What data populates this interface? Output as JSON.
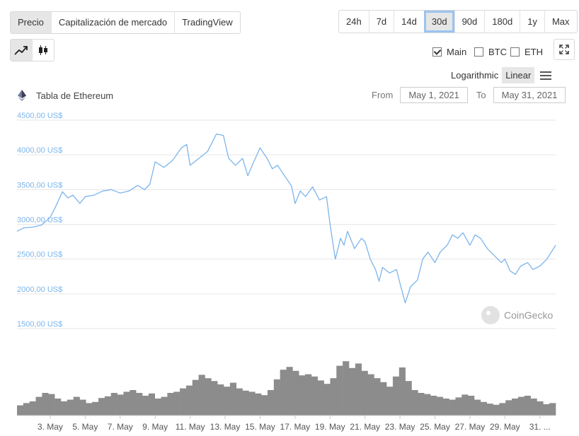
{
  "tabs": [
    {
      "label": "Precio",
      "active": true
    },
    {
      "label": "Capitalización de mercado",
      "active": false
    },
    {
      "label": "TradingView",
      "active": false
    }
  ],
  "ranges": [
    {
      "label": "24h"
    },
    {
      "label": "7d"
    },
    {
      "label": "14d"
    },
    {
      "label": "30d",
      "selected": true
    },
    {
      "label": "90d"
    },
    {
      "label": "180d"
    },
    {
      "label": "1y"
    },
    {
      "label": "Max"
    }
  ],
  "toggles": {
    "main": "Main",
    "btc": "BTC",
    "eth": "ETH"
  },
  "scale": {
    "logarithmic": "Logarithmic",
    "linear": "Linear"
  },
  "chart_title": "Tabla de Ethereum",
  "date_range": {
    "from_label": "From",
    "from": "May 1, 2021",
    "to_label": "To",
    "to": "May 31, 2021"
  },
  "watermark": "CoinGecko",
  "colors": {
    "line": "#7cb5ec",
    "volume": "#8c8c8c",
    "grid": "#e6e6e6",
    "axis_text": "#7cb5ec"
  },
  "chart_data": {
    "type": "line",
    "title": "Tabla de Ethereum",
    "y_ticks": [
      "4500,00 US$",
      "4000,00 US$",
      "3500,00 US$",
      "3000,00 US$",
      "2500,00 US$",
      "2000,00 US$",
      "1500,00 US$"
    ],
    "ylim": [
      1500,
      4500
    ],
    "xlim": [
      1.1,
      31.9
    ],
    "x_ticks": [
      "3. May",
      "5. May",
      "7. May",
      "9. May",
      "11. May",
      "13. May",
      "15. May",
      "17. May",
      "19. May",
      "21. May",
      "23. May",
      "25. May",
      "27. May",
      "29. May",
      "31. ..."
    ],
    "x_tick_days": [
      3,
      5,
      7,
      9,
      11,
      13,
      15,
      17,
      19,
      21,
      23,
      25,
      27,
      29,
      31
    ],
    "series": [
      {
        "points": [
          [
            1.1,
            2900
          ],
          [
            1.5,
            2950
          ],
          [
            2,
            2960
          ],
          [
            2.5,
            2990
          ],
          [
            3,
            3100
          ],
          [
            3.3,
            3250
          ],
          [
            3.7,
            3470
          ],
          [
            4,
            3380
          ],
          [
            4.3,
            3420
          ],
          [
            4.7,
            3300
          ],
          [
            5,
            3400
          ],
          [
            5.5,
            3420
          ],
          [
            6,
            3480
          ],
          [
            6.5,
            3500
          ],
          [
            7,
            3450
          ],
          [
            7.5,
            3480
          ],
          [
            8,
            3560
          ],
          [
            8.4,
            3500
          ],
          [
            8.7,
            3580
          ],
          [
            9,
            3900
          ],
          [
            9.5,
            3820
          ],
          [
            10,
            3920
          ],
          [
            10.5,
            4100
          ],
          [
            10.8,
            4150
          ],
          [
            11,
            3850
          ],
          [
            11.5,
            3950
          ],
          [
            12,
            4050
          ],
          [
            12.5,
            4300
          ],
          [
            12.9,
            4280
          ],
          [
            13.2,
            3950
          ],
          [
            13.6,
            3850
          ],
          [
            14,
            3950
          ],
          [
            14.3,
            3700
          ],
          [
            14.6,
            3880
          ],
          [
            15,
            4100
          ],
          [
            15.4,
            3950
          ],
          [
            15.7,
            3800
          ],
          [
            16,
            3850
          ],
          [
            16.4,
            3700
          ],
          [
            16.8,
            3550
          ],
          [
            17,
            3300
          ],
          [
            17.3,
            3480
          ],
          [
            17.6,
            3400
          ],
          [
            18,
            3540
          ],
          [
            18.4,
            3350
          ],
          [
            18.8,
            3400
          ],
          [
            19,
            3000
          ],
          [
            19.3,
            2500
          ],
          [
            19.6,
            2800
          ],
          [
            19.8,
            2700
          ],
          [
            20,
            2900
          ],
          [
            20.4,
            2650
          ],
          [
            20.8,
            2800
          ],
          [
            21,
            2750
          ],
          [
            21.3,
            2500
          ],
          [
            21.6,
            2350
          ],
          [
            21.8,
            2180
          ],
          [
            22,
            2380
          ],
          [
            22.4,
            2300
          ],
          [
            22.8,
            2350
          ],
          [
            23,
            2150
          ],
          [
            23.3,
            1870
          ],
          [
            23.6,
            2100
          ],
          [
            24,
            2200
          ],
          [
            24.3,
            2500
          ],
          [
            24.6,
            2600
          ],
          [
            25,
            2450
          ],
          [
            25.3,
            2600
          ],
          [
            25.7,
            2700
          ],
          [
            26,
            2850
          ],
          [
            26.3,
            2800
          ],
          [
            26.6,
            2880
          ],
          [
            27,
            2700
          ],
          [
            27.3,
            2850
          ],
          [
            27.6,
            2800
          ],
          [
            28,
            2650
          ],
          [
            28.4,
            2550
          ],
          [
            28.8,
            2450
          ],
          [
            29,
            2500
          ],
          [
            29.3,
            2330
          ],
          [
            29.6,
            2280
          ],
          [
            29.9,
            2400
          ],
          [
            30.3,
            2450
          ],
          [
            30.6,
            2350
          ],
          [
            31,
            2400
          ],
          [
            31.4,
            2500
          ],
          [
            31.9,
            2700
          ]
        ]
      }
    ],
    "volume": [
      0.18,
      0.22,
      0.25,
      0.33,
      0.4,
      0.38,
      0.3,
      0.25,
      0.28,
      0.33,
      0.28,
      0.22,
      0.24,
      0.31,
      0.34,
      0.4,
      0.37,
      0.42,
      0.45,
      0.4,
      0.35,
      0.39,
      0.3,
      0.33,
      0.4,
      0.42,
      0.48,
      0.53,
      0.63,
      0.72,
      0.66,
      0.61,
      0.55,
      0.51,
      0.58,
      0.48,
      0.44,
      0.42,
      0.39,
      0.36,
      0.45,
      0.64,
      0.81,
      0.86,
      0.79,
      0.71,
      0.73,
      0.69,
      0.62,
      0.56,
      0.66,
      0.88,
      0.96,
      0.84,
      0.92,
      0.79,
      0.73,
      0.66,
      0.59,
      0.51,
      0.69,
      0.85,
      0.61,
      0.45,
      0.4,
      0.38,
      0.35,
      0.33,
      0.3,
      0.28,
      0.32,
      0.37,
      0.35,
      0.28,
      0.24,
      0.21,
      0.19,
      0.22,
      0.27,
      0.3,
      0.33,
      0.35,
      0.3,
      0.25,
      0.2,
      0.22
    ]
  }
}
